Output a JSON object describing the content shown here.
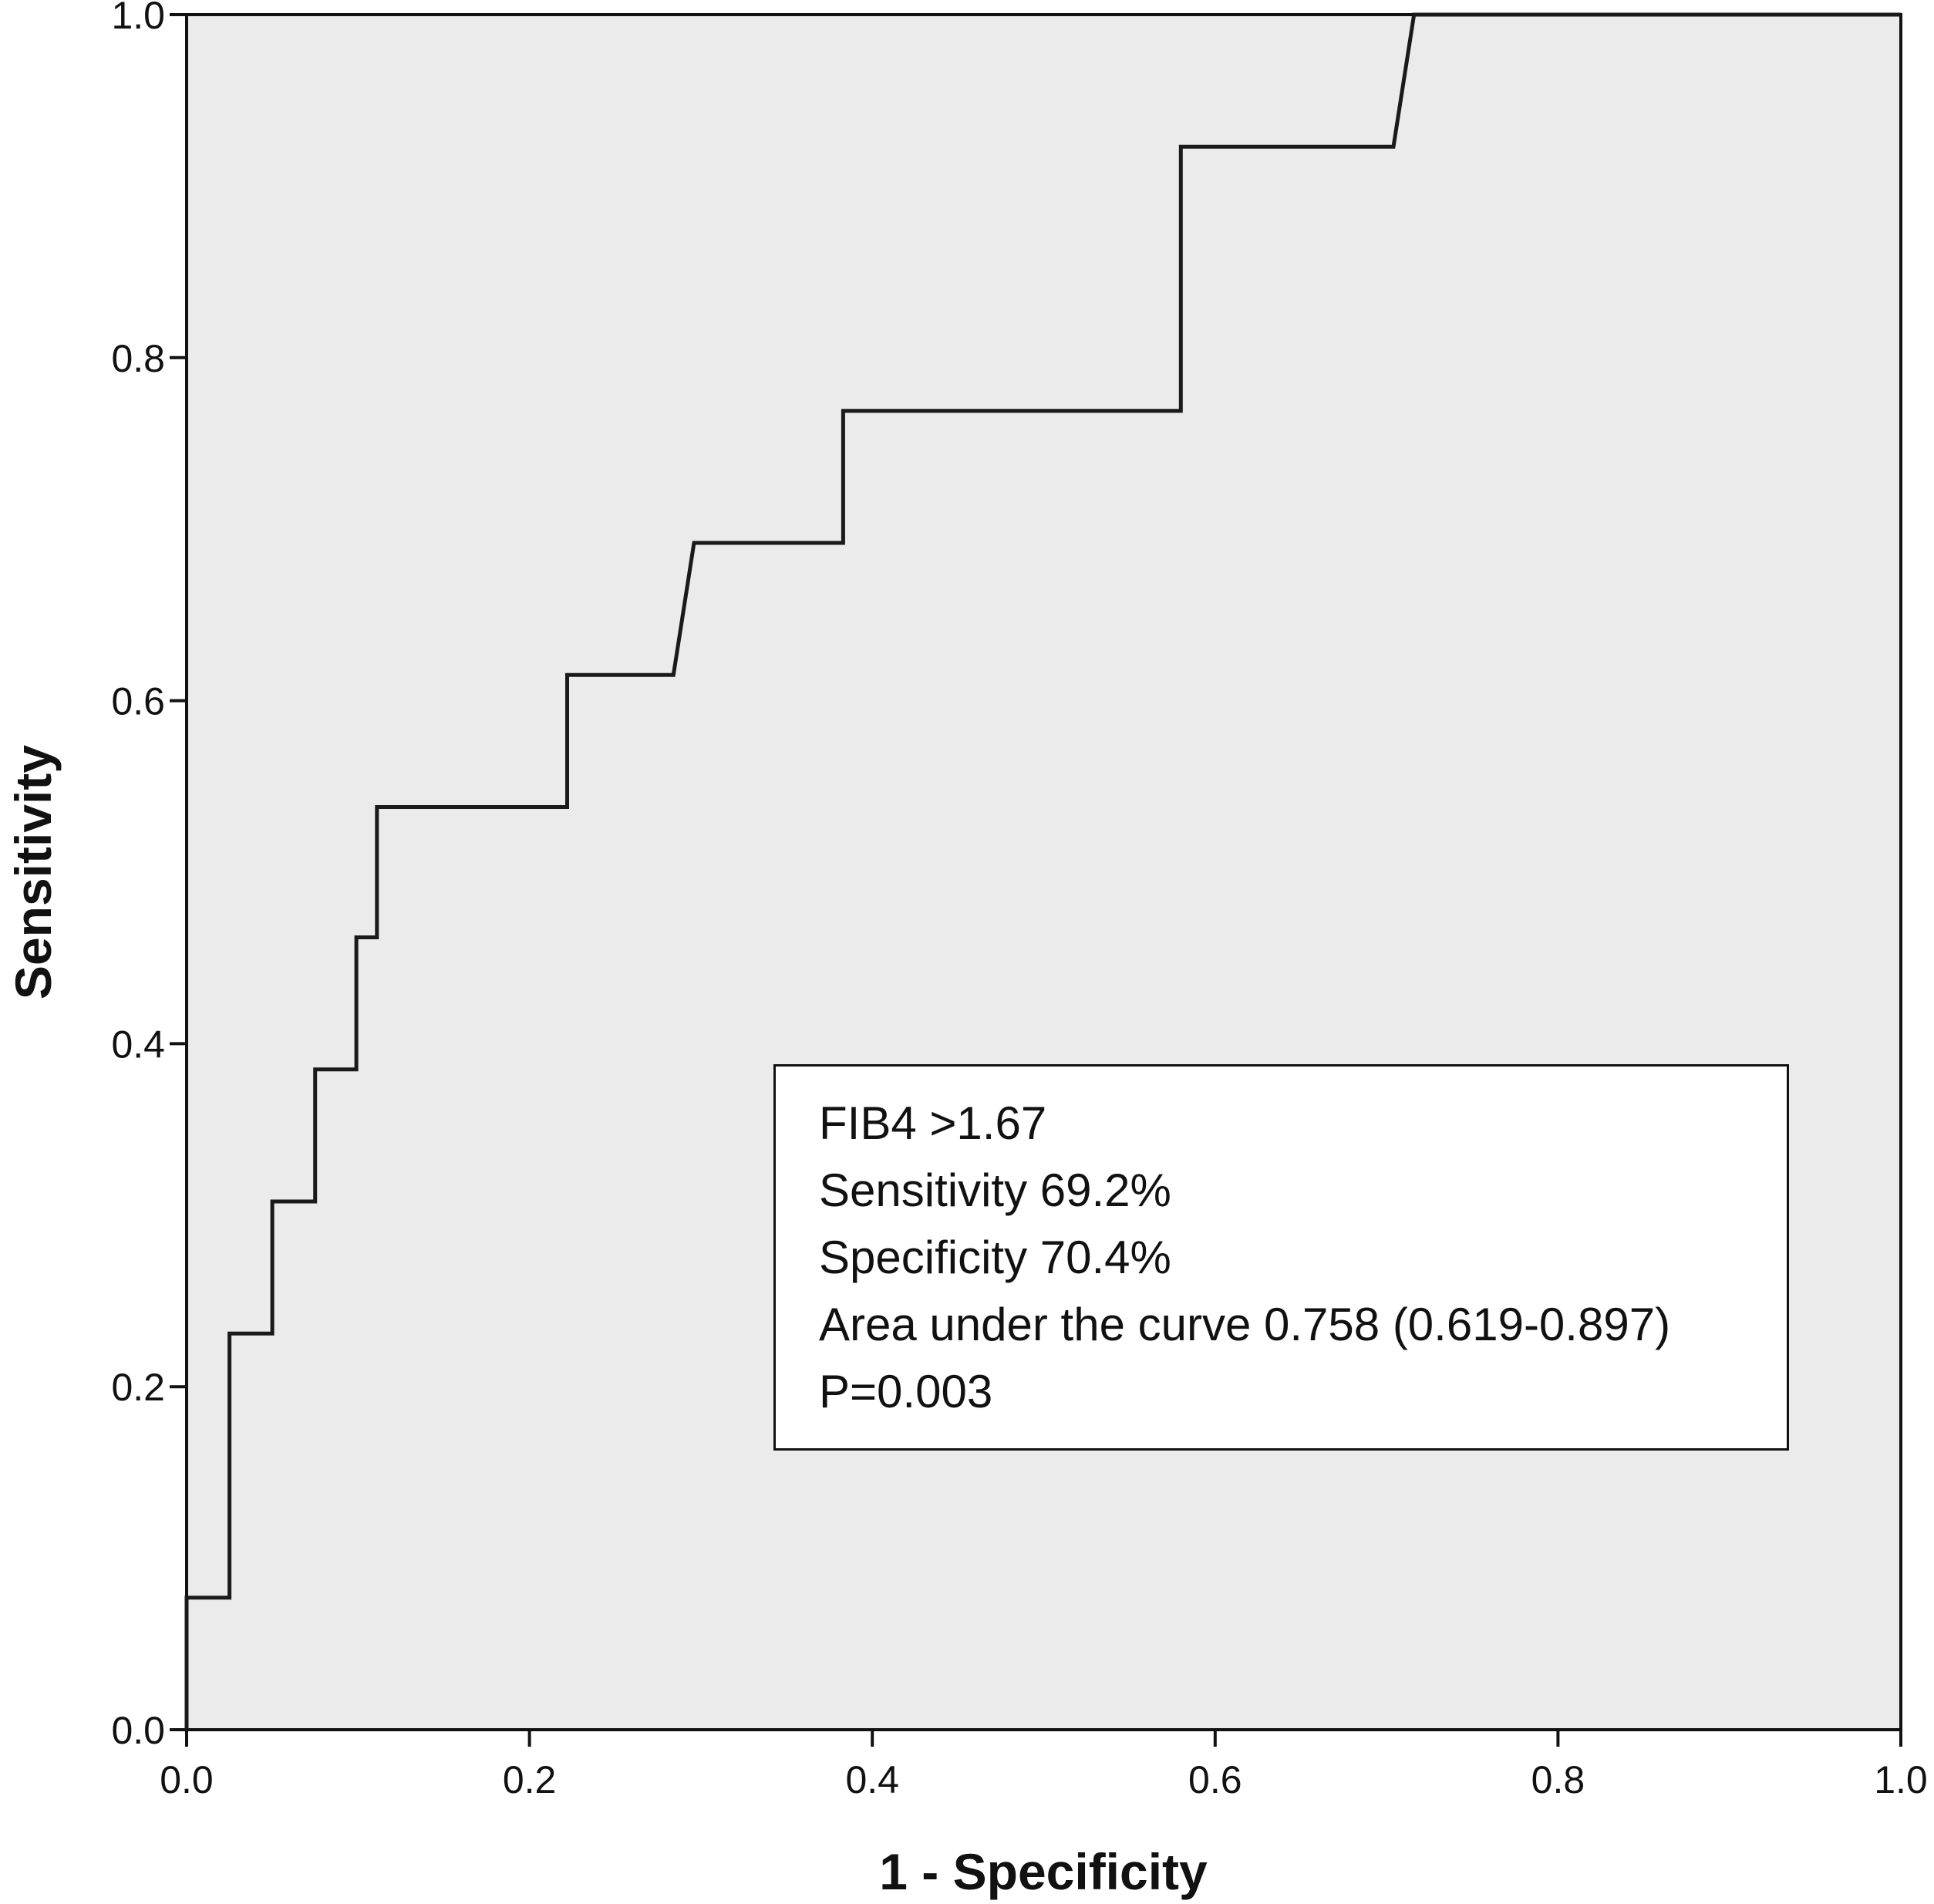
{
  "chart_data": {
    "type": "line",
    "xlabel": "1 - Specificity",
    "ylabel": "Sensitivity",
    "xlim": [
      0,
      1
    ],
    "ylim": [
      0,
      1
    ],
    "xticks": [
      "0.0",
      "0.2",
      "0.4",
      "0.6",
      "0.8",
      "1.0"
    ],
    "yticks": [
      "0.0",
      "0.2",
      "0.4",
      "0.6",
      "0.8",
      "1.0"
    ],
    "grid": false,
    "background_color": "#ebebeb",
    "line_color": "#1a1a1a",
    "series": [
      {
        "x": [
          0,
          0,
          0.025,
          0.025,
          0.05,
          0.05,
          0.075,
          0.075,
          0.099,
          0.099,
          0.111,
          0.111,
          0.222,
          0.222,
          0.284,
          0.296,
          0.383,
          0.383,
          0.58,
          0.58,
          0.704,
          0.716,
          1.0
        ],
        "y": [
          0,
          0.077,
          0.077,
          0.231,
          0.231,
          0.308,
          0.308,
          0.385,
          0.385,
          0.462,
          0.462,
          0.538,
          0.538,
          0.615,
          0.615,
          0.692,
          0.692,
          0.769,
          0.769,
          0.923,
          0.923,
          1.0,
          1.0
        ]
      }
    ],
    "annotations": [
      "FIB4 >1.67",
      "Sensitivity 69.2%",
      "Specificity 70.4%",
      "Area under the curve 0.758 (0.619-0.897)",
      "P=0.003"
    ],
    "legend_placement": "bottom-right"
  }
}
